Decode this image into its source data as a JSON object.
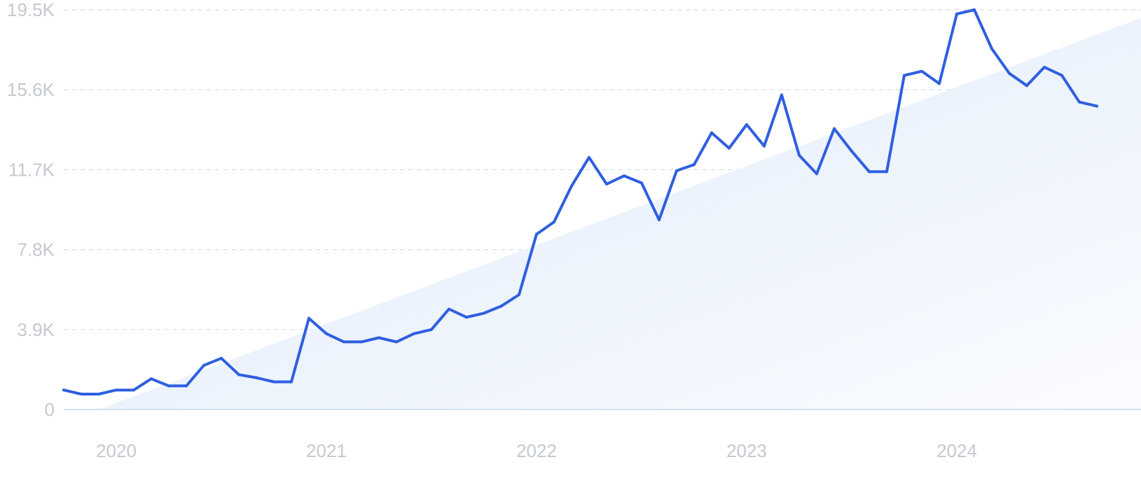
{
  "chart_data": {
    "type": "line",
    "title": "",
    "xlabel": "",
    "ylabel": "",
    "y_ticks": [
      "0",
      "3.9K",
      "7.8K",
      "11.7K",
      "15.6K",
      "19.5K"
    ],
    "y_tick_values": [
      0,
      3900,
      7800,
      11700,
      15600,
      19500
    ],
    "ylim": [
      0,
      19500
    ],
    "x_ticks": [
      "2020",
      "2021",
      "2022",
      "2023",
      "2024"
    ],
    "x_tick_values": [
      "2020-01",
      "2021-01",
      "2022-01",
      "2023-01",
      "2024-01"
    ],
    "xlim": [
      "2019-10",
      "2024-09"
    ],
    "grid": true,
    "legend": "none",
    "colors": {
      "line": "#2f5fe0",
      "area": "#e6f0fb",
      "grid": "#d2dbe8",
      "axis_text": "#c4c8d0"
    },
    "series": [
      {
        "x": [
          "2019-10",
          "2019-11",
          "2019-12",
          "2020-01",
          "2020-02",
          "2020-03",
          "2020-04",
          "2020-05",
          "2020-06",
          "2020-07",
          "2020-08",
          "2020-09",
          "2020-10",
          "2020-11",
          "2020-12",
          "2021-01",
          "2021-02",
          "2021-03",
          "2021-04",
          "2021-05",
          "2021-06",
          "2021-07",
          "2021-08",
          "2021-09",
          "2021-10",
          "2021-11",
          "2021-12",
          "2022-01",
          "2022-02",
          "2022-03",
          "2022-04",
          "2022-05",
          "2022-06",
          "2022-07",
          "2022-08",
          "2022-09",
          "2022-10",
          "2022-11",
          "2022-12",
          "2023-01",
          "2023-02",
          "2023-03",
          "2023-04",
          "2023-05",
          "2023-06",
          "2023-07",
          "2023-08",
          "2023-09",
          "2023-10",
          "2023-11",
          "2023-12",
          "2024-01",
          "2024-02",
          "2024-03",
          "2024-04",
          "2024-05",
          "2024-06",
          "2024-07",
          "2024-08",
          "2024-09"
        ],
        "values": [
          950,
          750,
          750,
          950,
          950,
          1500,
          1150,
          1150,
          2150,
          2500,
          1700,
          1550,
          1350,
          1350,
          4450,
          3700,
          3300,
          3300,
          3500,
          3300,
          3700,
          3900,
          4900,
          4500,
          4700,
          5050,
          5600,
          8550,
          9150,
          10900,
          12300,
          11000,
          11400,
          11050,
          9250,
          11650,
          11950,
          13500,
          12750,
          13900,
          12850,
          15350,
          12400,
          11500,
          13700,
          12600,
          11600,
          11600,
          16300,
          16500,
          15900,
          19300,
          19500,
          17600,
          16400,
          15800,
          16700,
          16300,
          15000,
          14800
        ]
      }
    ],
    "trend": {
      "x": [
        "2019-12",
        "2024-09"
      ],
      "values": [
        0,
        18300
      ]
    }
  }
}
